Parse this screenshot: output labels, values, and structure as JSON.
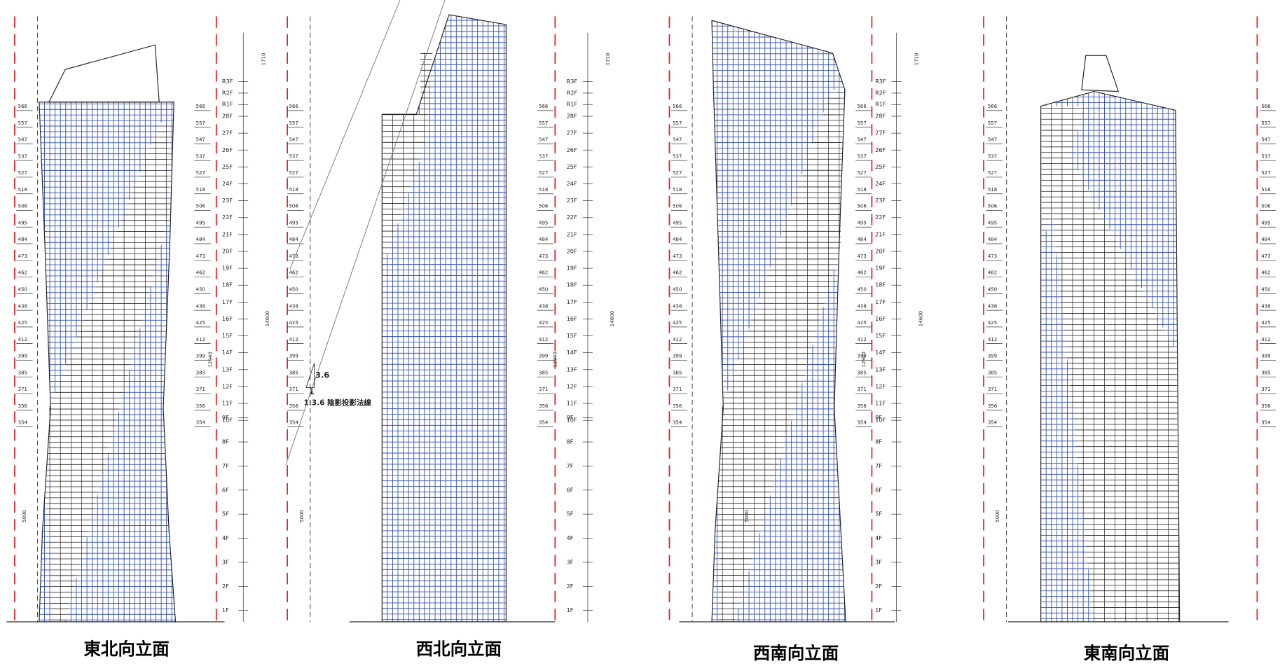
{
  "captions": [
    "東北向立面",
    "西北向立面",
    "西南向立面",
    "東南向立面"
  ],
  "floors": [
    "1F",
    "2F",
    "3F",
    "4F",
    "5F",
    "6F",
    "7F",
    "8F",
    "9F",
    "10F",
    "11F",
    "12F",
    "13F",
    "14F",
    "15F",
    "16F",
    "17F",
    "18F",
    "19F",
    "20F",
    "21F",
    "22F",
    "23F",
    "24F",
    "25F",
    "26F",
    "27F",
    "28F",
    "R1F",
    "R2F",
    "R3F"
  ],
  "levels": [
    "354",
    "356",
    "371",
    "385",
    "399",
    "412",
    "425",
    "438",
    "450",
    "462",
    "473",
    "484",
    "495",
    "506",
    "518",
    "527",
    "537",
    "547",
    "557",
    "566"
  ],
  "dimensions": {
    "base": "5000",
    "middle": "12940",
    "total": "14600",
    "roof": "1710"
  },
  "annotation": {
    "ratio": "3.6",
    "unit": "1",
    "label": "1:3.6 陰影投影法線"
  }
}
